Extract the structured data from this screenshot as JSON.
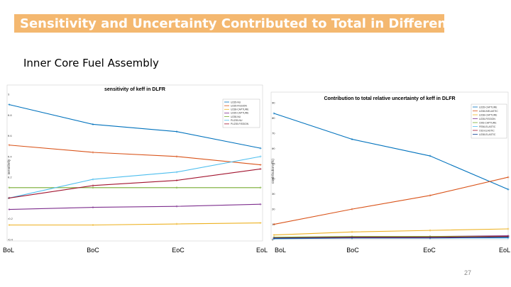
{
  "slide": {
    "title": "Sensitivity and Uncertainty Contributed to Total in Different Periods",
    "subtitle": "Inner Core Fuel Assembly",
    "page_number": "27"
  },
  "colors": {
    "banner": "#f4b870",
    "title_text": "#ffffff"
  },
  "chart_data": [
    {
      "type": "line",
      "title": "sensitivity of keff in DLFR",
      "xlabel": "",
      "ylabel": "sensitivity",
      "categories": [
        "BoL",
        "BoC",
        "EoC",
        "EoL"
      ],
      "ylim": [
        -0.4,
        1
      ],
      "yticks": [
        "1",
        "0.8",
        "0.6",
        "0.4",
        "0.2",
        "0",
        "-0.2",
        "-0.4"
      ],
      "legend_position": "top-right",
      "series": [
        {
          "name": "U235-NU",
          "color": "#0072bd",
          "values": [
            0.9,
            0.71,
            0.64,
            0.48
          ]
        },
        {
          "name": "U235-FISSION",
          "color": "#d95319",
          "values": [
            0.51,
            0.44,
            0.4,
            0.32
          ]
        },
        {
          "name": "U238-CAPTURE",
          "color": "#edb120",
          "values": [
            -0.26,
            -0.26,
            -0.25,
            -0.24
          ]
        },
        {
          "name": "U235-CAPTURE",
          "color": "#7e2f8e",
          "values": [
            -0.11,
            -0.09,
            -0.08,
            -0.06
          ]
        },
        {
          "name": "U238-NU",
          "color": "#77ac30",
          "values": [
            0.1,
            0.1,
            0.1,
            0.1
          ]
        },
        {
          "name": "PU239-NU",
          "color": "#4dbeee",
          "values": [
            0.0,
            0.18,
            0.25,
            0.4
          ]
        },
        {
          "name": "PU239-FISSION",
          "color": "#a2142f",
          "values": [
            0.0,
            0.12,
            0.17,
            0.28
          ]
        }
      ]
    },
    {
      "type": "line",
      "title": "Contribution to total relative uncertainty of keff in DLFR",
      "xlabel": "",
      "ylabel": "contribution (%)",
      "categories": [
        "BoL",
        "BoC",
        "EoC",
        "EoL"
      ],
      "ylim": [
        0,
        90
      ],
      "yticks": [
        "90",
        "80",
        "70",
        "60",
        "50",
        "40",
        "30",
        "20",
        "10",
        "0"
      ],
      "legend_position": "top-right",
      "series": [
        {
          "name": "U235-CAPTURE",
          "color": "#0072bd",
          "values": [
            83,
            66,
            55,
            33
          ]
        },
        {
          "name": "U238-INELASTIC",
          "color": "#d95319",
          "values": [
            10,
            20,
            29,
            41
          ]
        },
        {
          "name": "U238-CAPTURE",
          "color": "#edb120",
          "values": [
            3,
            5,
            6,
            7
          ]
        },
        {
          "name": "U235-FISSION",
          "color": "#7e2f8e",
          "values": [
            1,
            1.5,
            2,
            2.5
          ]
        },
        {
          "name": "CM3-CAPTURE",
          "color": "#77ac30",
          "values": [
            1.5,
            2,
            2,
            2
          ]
        },
        {
          "name": "FE56-ELASTIC",
          "color": "#4dbeee",
          "values": [
            0.5,
            1,
            1,
            1
          ]
        },
        {
          "name": "O16-ELASTIC",
          "color": "#a2142f",
          "values": [
            1,
            1.5,
            1.5,
            2
          ]
        },
        {
          "name": "U238-ELASTIC",
          "color": "#0b3d91",
          "values": [
            0.8,
            1,
            1,
            1.5
          ]
        }
      ]
    }
  ]
}
